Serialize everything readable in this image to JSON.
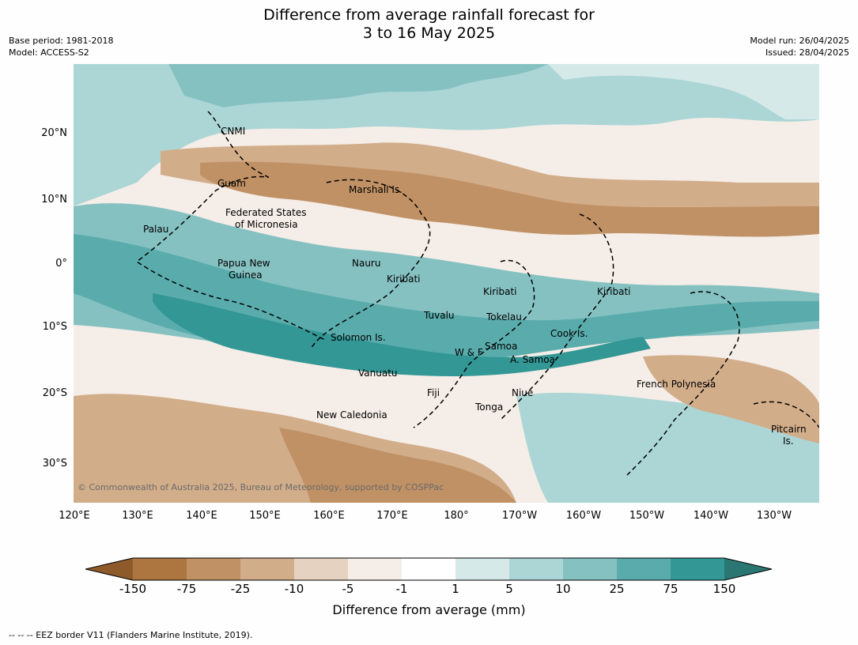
{
  "title_line1": "Difference from average rainfall forecast for",
  "title_line2": "3 to 16 May 2025",
  "base_period": "Base period: 1981-2018",
  "model": "Model: ACCESS-S2",
  "model_run": "Model run: 26/04/2025",
  "issued": "Issued: 28/04/2025",
  "lat_ticks": [
    "20°N",
    "10°N",
    "0°",
    "10°S",
    "20°S",
    "30°S"
  ],
  "lon_ticks": [
    "120°E",
    "130°E",
    "140°E",
    "150°E",
    "160°E",
    "170°E",
    "180°",
    "170°W",
    "160°W",
    "150°W",
    "140°W",
    "130°W"
  ],
  "places": {
    "cnmi": "CNMI",
    "guam": "Guam",
    "marshall": "Marshall Is.",
    "fsm1": "Federated States",
    "fsm2": "of Micronesia",
    "palau": "Palau",
    "png1": "Papua New",
    "png2": "Guinea",
    "nauru": "Nauru",
    "kiribati_w": "Kiribati",
    "kiribati_c": "Kiribati",
    "kiribati_e": "Kiribati",
    "tuvalu": "Tuvalu",
    "tokelau": "Tokelau",
    "solomon": "Solomon Is.",
    "samoa": "Samoa",
    "wf": "W & F",
    "asamoa": "A. Samoa",
    "cook": "Cook Is.",
    "vanuatu": "Vanuatu",
    "fiji": "Fiji",
    "niue": "Niue",
    "tonga": "Tonga",
    "frpoly": "French Polynesia",
    "newcal": "New Caledonia",
    "pitcairn1": "Pitcairn",
    "pitcairn2": "Is."
  },
  "copyright": "© Commonwealth of Australia 2025, Bureau of Meteorology, supported by COSPPac",
  "colorbar": {
    "title": "Difference from average (mm)",
    "labels": [
      "-150",
      "-75",
      "-25",
      "-10",
      "-5",
      "-1",
      "1",
      "5",
      "10",
      "25",
      "75",
      "150"
    ],
    "colors": [
      "#8f5a2a",
      "#ad7640",
      "#c09165",
      "#d2ad8a",
      "#e6d2c1",
      "#f5ede7",
      "#ffffff",
      "#d4e9e8",
      "#acd6d6",
      "#86c1c2",
      "#5aacac",
      "#339795",
      "#2a7673"
    ]
  },
  "footer": "--  --  -- EEZ border V11 (Flanders Marine Institute, 2019)."
}
